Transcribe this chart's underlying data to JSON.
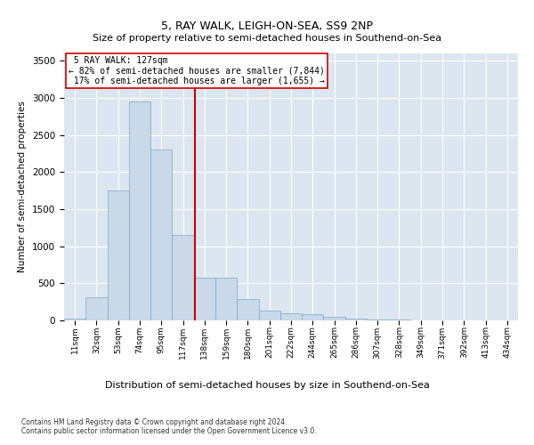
{
  "title": "5, RAY WALK, LEIGH-ON-SEA, SS9 2NP",
  "subtitle": "Size of property relative to semi-detached houses in Southend-on-Sea",
  "xlabel": "Distribution of semi-detached houses by size in Southend-on-Sea",
  "ylabel": "Number of semi-detached properties",
  "footnote1": "Contains HM Land Registry data © Crown copyright and database right 2024.",
  "footnote2": "Contains public sector information licensed under the Open Government Licence v3.0.",
  "property_size": 127,
  "property_label": "5 RAY WALK: 127sqm",
  "pct_smaller": 82,
  "count_smaller": 7844,
  "pct_larger": 17,
  "count_larger": 1655,
  "bar_color": "#c9d9e8",
  "bar_edge_color": "#7aaac8",
  "line_color": "#cc0000",
  "box_edge_color": "#cc0000",
  "bg_color": "#dce6f0",
  "categories": [
    "11sqm",
    "32sqm",
    "53sqm",
    "74sqm",
    "95sqm",
    "117sqm",
    "138sqm",
    "159sqm",
    "180sqm",
    "201sqm",
    "222sqm",
    "244sqm",
    "265sqm",
    "286sqm",
    "307sqm",
    "328sqm",
    "349sqm",
    "371sqm",
    "392sqm",
    "413sqm",
    "434sqm"
  ],
  "bin_edges": [
    0,
    21,
    42,
    63,
    84,
    105,
    126,
    147,
    168,
    189,
    210,
    231,
    252,
    273,
    294,
    315,
    336,
    357,
    378,
    399,
    420,
    441
  ],
  "values": [
    30,
    310,
    1750,
    2950,
    2300,
    1150,
    580,
    580,
    290,
    135,
    100,
    90,
    50,
    20,
    10,
    8,
    5,
    3,
    2,
    1,
    0
  ],
  "ylim": [
    0,
    3600
  ],
  "yticks": [
    0,
    500,
    1000,
    1500,
    2000,
    2500,
    3000,
    3500
  ]
}
